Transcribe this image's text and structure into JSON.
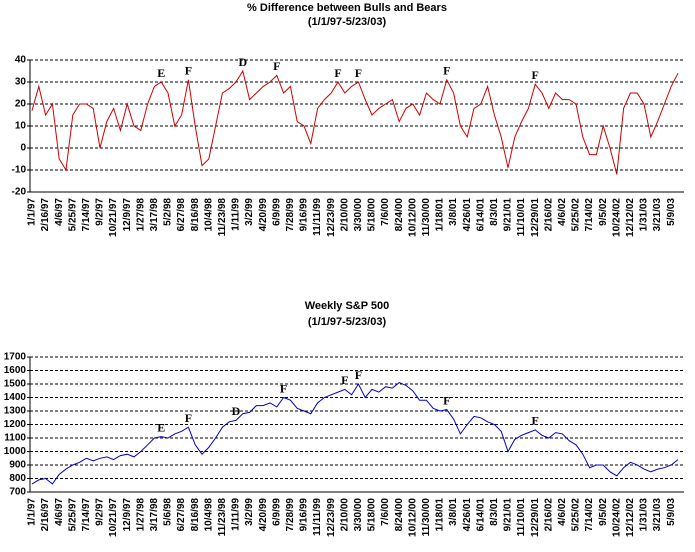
{
  "chart_data": [
    {
      "type": "line",
      "title": "% Difference between Bulls and Bears",
      "subtitle": "(1/1/97-5/23/03)",
      "categories": [
        "1/1/97",
        null,
        "2/16/97",
        null,
        "4/6/97",
        null,
        "5/25/97",
        null,
        "7/14/97",
        null,
        "9/2/97",
        null,
        "10/21/97",
        null,
        "12/9/97",
        null,
        "1/27/98",
        null,
        "3/17/98",
        null,
        "5/2/98",
        null,
        "6/27/98",
        null,
        "8/16/98",
        null,
        "10/4/98",
        null,
        "11/23/98",
        null,
        "1/11/99",
        null,
        "3/2/99",
        null,
        "4/20/99",
        null,
        "6/9/99",
        null,
        "7/28/99",
        null,
        "9/16/99",
        null,
        "11/11/99",
        null,
        "12/23/99",
        null,
        "2/10/00",
        null,
        "3/30/00",
        null,
        "5/18/00",
        null,
        "7/6/00",
        null,
        "8/24/00",
        null,
        "10/12/00",
        null,
        "11/30/00",
        null,
        "1/18/01",
        null,
        "3/8/01",
        null,
        "4/26/01",
        null,
        "6/14/01",
        null,
        "8/3/01",
        null,
        "9/21/01",
        null,
        "11/10/01",
        null,
        "12/29/01",
        null,
        "2/16/02",
        null,
        "4/6/02",
        null,
        "5/25/02",
        null,
        "7/14/02",
        null,
        "9/5/02",
        null,
        "10/24/02",
        null,
        "12/12/02",
        null,
        "1/31/03",
        null,
        "3/21/03",
        null,
        "5/9/03",
        null
      ],
      "values": [
        17,
        28,
        15,
        20,
        -5,
        -10,
        15,
        20,
        20,
        18,
        0,
        12,
        18,
        8,
        20,
        10,
        8,
        20,
        28,
        30,
        25,
        10,
        15,
        31,
        10,
        -8,
        -5,
        10,
        25,
        27,
        30,
        35,
        22,
        25,
        28,
        30,
        33,
        25,
        28,
        12,
        10,
        2,
        18,
        22,
        25,
        30,
        25,
        28,
        30,
        22,
        15,
        18,
        20,
        22,
        12,
        18,
        20,
        15,
        25,
        22,
        20,
        31,
        25,
        10,
        5,
        18,
        20,
        28,
        15,
        5,
        -9,
        5,
        12,
        18,
        29,
        25,
        18,
        25,
        22,
        22,
        20,
        5,
        -3,
        -3,
        10,
        0,
        -12,
        18,
        25,
        25,
        20,
        5,
        12,
        20,
        28,
        34
      ],
      "point_labels": [
        null,
        null,
        null,
        null,
        null,
        null,
        null,
        null,
        null,
        null,
        null,
        null,
        null,
        null,
        null,
        null,
        null,
        null,
        null,
        "E",
        null,
        null,
        null,
        "F",
        null,
        null,
        null,
        null,
        null,
        null,
        null,
        "D",
        null,
        null,
        null,
        null,
        "F",
        null,
        null,
        null,
        null,
        null,
        null,
        null,
        null,
        "F",
        null,
        null,
        "F",
        null,
        null,
        null,
        null,
        null,
        null,
        null,
        null,
        null,
        null,
        null,
        null,
        "F",
        null,
        null,
        null,
        null,
        null,
        null,
        null,
        null,
        null,
        null,
        null,
        null,
        "F",
        null,
        null,
        null,
        null,
        null,
        null,
        null,
        null,
        null,
        null,
        null,
        null,
        null,
        null,
        null,
        null,
        null,
        null,
        null,
        null,
        null
      ],
      "color": "#cc0000",
      "ylim": [
        -20,
        40
      ],
      "yticks": [
        -20,
        -10,
        0,
        10,
        20,
        30,
        40
      ],
      "grid": true
    },
    {
      "type": "line",
      "title": "Weekly S&P 500",
      "subtitle": "(1/1/97-5/23/03)",
      "categories": [
        "1/1/97",
        null,
        "2/16/97",
        null,
        "4/6/97",
        null,
        "5/25/97",
        null,
        "7/14/97",
        null,
        "9/2/97",
        null,
        "10/21/97",
        null,
        "12/9/97",
        null,
        "1/27/98",
        null,
        "3/17/98",
        null,
        "5/6/98",
        null,
        "6/27/98",
        null,
        "8/16/98",
        null,
        "10/4/98",
        null,
        "11/23/98",
        null,
        "1/11/99",
        null,
        "3/2/99",
        null,
        "4/20/99",
        null,
        "6/9/99",
        null,
        "7/28/99",
        null,
        "9/16/99",
        null,
        "11/11/99",
        null,
        "12/23/99",
        null,
        "2/10/00",
        null,
        "3/30/00",
        null,
        "5/18/00",
        null,
        "7/6/00",
        null,
        "8/24/00",
        null,
        "10/12/00",
        null,
        "11/30/00",
        null,
        "1/18/01",
        null,
        "3/8/01",
        null,
        "4/26/01",
        null,
        "6/14/01",
        null,
        "8/3/01",
        null,
        "9/21/01",
        null,
        "11/10/01",
        null,
        "12/29/01",
        null,
        "2/16/02",
        null,
        "4/6/02",
        null,
        "5/25/02",
        null,
        "7/14/02",
        null,
        "9/5/02",
        null,
        "10/24/02",
        null,
        "12/12/02",
        null,
        "1/31/03",
        null,
        "3/21/03",
        null,
        "5/9/03",
        null
      ],
      "values": [
        760,
        790,
        800,
        760,
        830,
        870,
        900,
        920,
        950,
        930,
        950,
        960,
        940,
        970,
        980,
        960,
        1000,
        1050,
        1100,
        1110,
        1100,
        1130,
        1150,
        1180,
        1050,
        980,
        1030,
        1100,
        1180,
        1220,
        1230,
        1280,
        1290,
        1340,
        1340,
        1360,
        1330,
        1400,
        1380,
        1320,
        1300,
        1280,
        1360,
        1400,
        1420,
        1440,
        1460,
        1420,
        1500,
        1400,
        1460,
        1440,
        1480,
        1470,
        1510,
        1490,
        1450,
        1380,
        1380,
        1320,
        1300,
        1310,
        1240,
        1130,
        1200,
        1260,
        1250,
        1220,
        1200,
        1150,
        1000,
        1090,
        1120,
        1140,
        1160,
        1120,
        1100,
        1140,
        1130,
        1080,
        1050,
        980,
        880,
        900,
        900,
        850,
        820,
        880,
        920,
        900,
        870,
        850,
        870,
        880,
        900,
        940
      ],
      "point_labels": [
        null,
        null,
        null,
        null,
        null,
        null,
        null,
        null,
        null,
        null,
        null,
        null,
        null,
        null,
        null,
        null,
        null,
        null,
        null,
        "E",
        null,
        null,
        null,
        "F",
        null,
        null,
        null,
        null,
        null,
        null,
        "D",
        null,
        null,
        null,
        null,
        null,
        null,
        "F",
        null,
        null,
        null,
        null,
        null,
        null,
        null,
        null,
        "F",
        null,
        "F",
        null,
        null,
        null,
        null,
        null,
        null,
        null,
        null,
        null,
        null,
        null,
        null,
        "F",
        null,
        null,
        null,
        null,
        null,
        null,
        null,
        null,
        null,
        null,
        null,
        null,
        "F",
        null,
        null,
        null,
        null,
        null,
        null,
        null,
        null,
        null,
        null,
        null,
        null,
        null,
        null,
        null,
        null,
        null,
        null,
        null,
        null,
        null
      ],
      "color": "#0000cc",
      "ylim": [
        700,
        1700
      ],
      "yticks": [
        700,
        800,
        900,
        1000,
        1100,
        1200,
        1300,
        1400,
        1500,
        1600,
        1700
      ],
      "grid": true
    }
  ]
}
